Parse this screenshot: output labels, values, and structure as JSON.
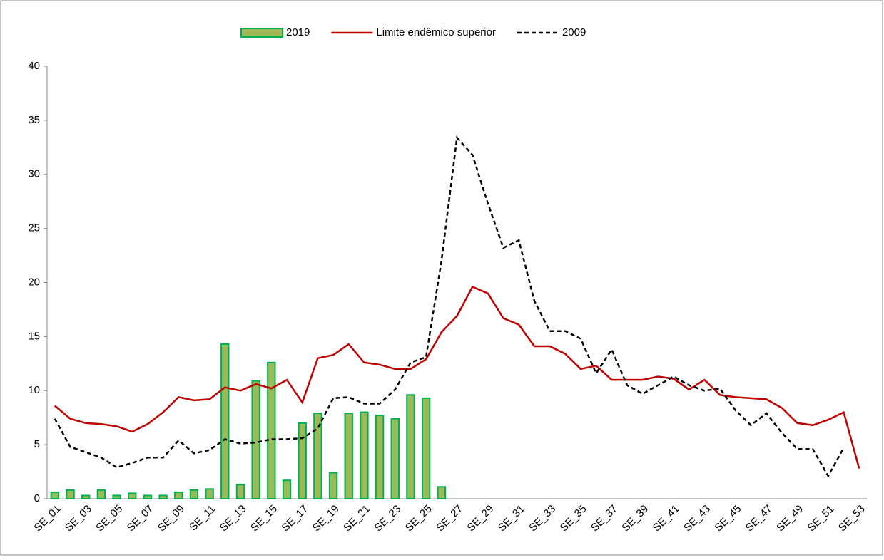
{
  "chart_data": {
    "type": "bar-line",
    "categories": [
      "SE_01",
      null,
      "SE_03",
      null,
      "SE_05",
      null,
      "SE_07",
      null,
      "SE_09",
      null,
      "SE_11",
      null,
      "SE_13",
      null,
      "SE_15",
      null,
      "SE_17",
      null,
      "SE_19",
      null,
      "SE_21",
      null,
      "SE_23",
      null,
      "SE_25",
      null,
      "SE_27",
      null,
      "SE_29",
      null,
      "SE_31",
      null,
      "SE_33",
      null,
      "SE_35",
      null,
      "SE_37",
      null,
      "SE_39",
      null,
      "SE_41",
      null,
      "SE_43",
      null,
      "SE_45",
      null,
      "SE_47",
      null,
      "SE_49",
      null,
      "SE_51",
      null,
      "SE_53"
    ],
    "series": [
      {
        "name": "2019",
        "kind": "bar",
        "color": "#9bbb59",
        "edge": "#00b050",
        "values": [
          0.6,
          0.8,
          0.3,
          0.8,
          0.3,
          0.5,
          0.3,
          0.3,
          0.6,
          0.8,
          0.9,
          14.3,
          1.3,
          10.9,
          12.6,
          1.7,
          7.0,
          7.9,
          2.4,
          7.9,
          8.0,
          7.7,
          7.4,
          9.6,
          9.3,
          1.1,
          null,
          null,
          null,
          null,
          null,
          null,
          null,
          null,
          null,
          null,
          null,
          null,
          null,
          null,
          null,
          null,
          null,
          null,
          null,
          null,
          null,
          null,
          null,
          null,
          null,
          null,
          null
        ]
      },
      {
        "name": "Limite endêmico superior",
        "kind": "line",
        "color": "#c00000",
        "dashed": false,
        "values": [
          8.6,
          7.4,
          7.0,
          6.9,
          6.7,
          6.2,
          6.9,
          8.0,
          9.4,
          9.1,
          9.2,
          10.3,
          10.0,
          10.6,
          10.2,
          11.0,
          8.9,
          13.0,
          13.3,
          14.3,
          12.6,
          12.4,
          12.0,
          12.0,
          12.9,
          15.4,
          16.9,
          19.6,
          19.0,
          16.7,
          16.1,
          14.1,
          14.1,
          13.4,
          12.0,
          12.3,
          11.0,
          11.0,
          11.0,
          11.3,
          11.1,
          10.1,
          11.0,
          9.6,
          9.4,
          9.3,
          9.2,
          8.4,
          7.0,
          6.8,
          7.3,
          8.0,
          2.8
        ]
      },
      {
        "name": "2009",
        "kind": "line",
        "color": "#000000",
        "dashed": true,
        "values": [
          7.4,
          4.8,
          4.3,
          3.8,
          2.9,
          3.3,
          3.8,
          3.8,
          5.4,
          4.2,
          4.5,
          5.5,
          5.1,
          5.2,
          5.5,
          5.5,
          5.6,
          6.5,
          9.3,
          9.4,
          8.8,
          8.8,
          10.1,
          12.6,
          13.1,
          22.0,
          33.4,
          31.8,
          27.3,
          23.2,
          23.9,
          18.3,
          15.5,
          15.5,
          14.8,
          11.6,
          13.8,
          10.5,
          9.7,
          10.5,
          11.3,
          10.5,
          10.0,
          10.2,
          8.2,
          6.8,
          7.9,
          6.1,
          4.6,
          4.6,
          2.1,
          4.7,
          null
        ]
      }
    ],
    "ylim": [
      0,
      40
    ],
    "yticks": [
      0,
      5,
      10,
      15,
      20,
      25,
      30,
      35,
      40
    ],
    "grid": false,
    "legend": "top"
  }
}
